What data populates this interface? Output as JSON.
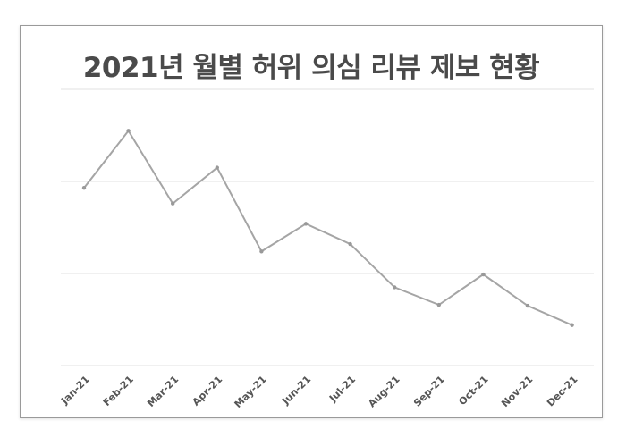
{
  "chart_data": {
    "type": "line",
    "title": "2021년 월별 허위 의심 리뷰 제보 현황",
    "xlabel": "",
    "ylabel": "",
    "categories": [
      "Jan-21",
      "Feb-21",
      "Mar-21",
      "Apr-21",
      "May-21",
      "Jun-21",
      "Jul-21",
      "Aug-21",
      "Sep-21",
      "Oct-21",
      "Nov-21",
      "Dec-21"
    ],
    "series": [
      {
        "name": "허위 의심 리뷰 제보",
        "values": [
          193,
          255,
          176,
          215,
          124,
          154,
          132,
          85,
          66,
          99,
          65,
          44
        ]
      }
    ],
    "ylim": [
      0,
      300
    ],
    "y_gridlines": [
      0,
      100,
      200,
      300
    ],
    "y_tick_labels_visible": false,
    "grid": true,
    "legend": "none",
    "line_color": "#a5a5a5"
  },
  "title": "2021년 월별 허위 의심 리뷰 제보 현황"
}
